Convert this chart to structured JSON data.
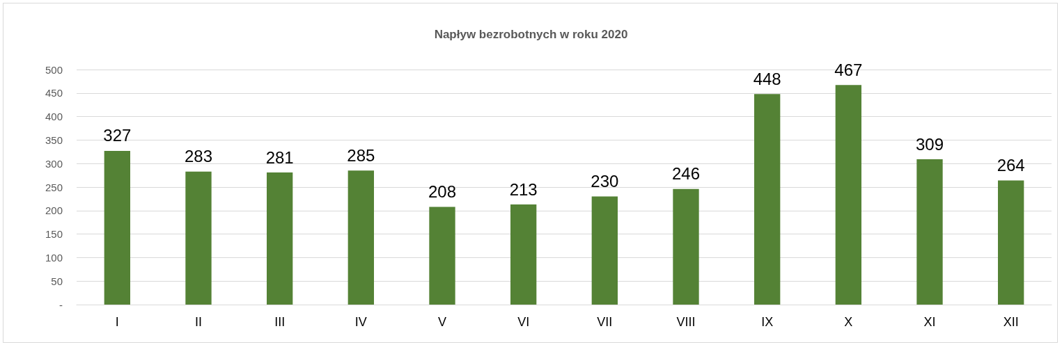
{
  "chart_data": {
    "type": "bar",
    "title": "Napływ bezrobotnych w roku 2020",
    "categories": [
      "I",
      "II",
      "III",
      "IV",
      "V",
      "VI",
      "VII",
      "VIII",
      "IX",
      "X",
      "XI",
      "XII"
    ],
    "values": [
      327,
      283,
      281,
      285,
      208,
      213,
      230,
      246,
      448,
      467,
      309,
      264
    ],
    "color": "#548235",
    "ylim": [
      0,
      500
    ],
    "yticks": [
      {
        "value": 0,
        "label": "-"
      },
      50,
      100,
      150,
      200,
      250,
      300,
      350,
      400,
      450,
      500
    ],
    "grid": "y",
    "data_labels": true
  }
}
